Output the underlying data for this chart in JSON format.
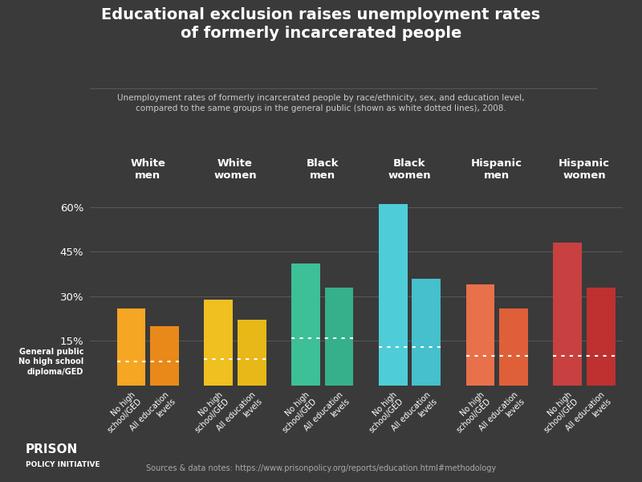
{
  "title": "Educational exclusion raises unemployment rates\nof formerly incarcerated people",
  "subtitle": "Unemployment rates of formerly incarcerated people by race/ethnicity, sex, and education level,\ncompared to the same groups in the general public (shown as white dotted lines), 2008.",
  "background_color": "#3a3a3a",
  "text_color": "#ffffff",
  "groups": [
    "White\nmen",
    "White\nwomen",
    "Black\nmen",
    "Black\nwomen",
    "Hispanic\nmen",
    "Hispanic\nwomen"
  ],
  "bar_values": [
    [
      26,
      20
    ],
    [
      29,
      22
    ],
    [
      41,
      33
    ],
    [
      61,
      36
    ],
    [
      34,
      26
    ],
    [
      48,
      33
    ]
  ],
  "dotted_line_values": [
    8,
    9,
    16,
    13,
    10,
    10
  ],
  "group_colors": [
    [
      "#f5a623",
      "#e8891a"
    ],
    [
      "#f0c020",
      "#e8b818"
    ],
    [
      "#3dbf98",
      "#35b08a"
    ],
    [
      "#4ecdd8",
      "#45c0cc"
    ],
    [
      "#e8704a",
      "#df6038"
    ],
    [
      "#c94040",
      "#bf3030"
    ]
  ],
  "yticks": [
    15,
    30,
    45,
    60
  ],
  "ylim": [
    0,
    68
  ],
  "source_text": "Sources & data notes: https://www.prisonpolicy.org/reports/education.html#methodology",
  "general_public_label": "General public\nNo high school\ndiploma/GED"
}
